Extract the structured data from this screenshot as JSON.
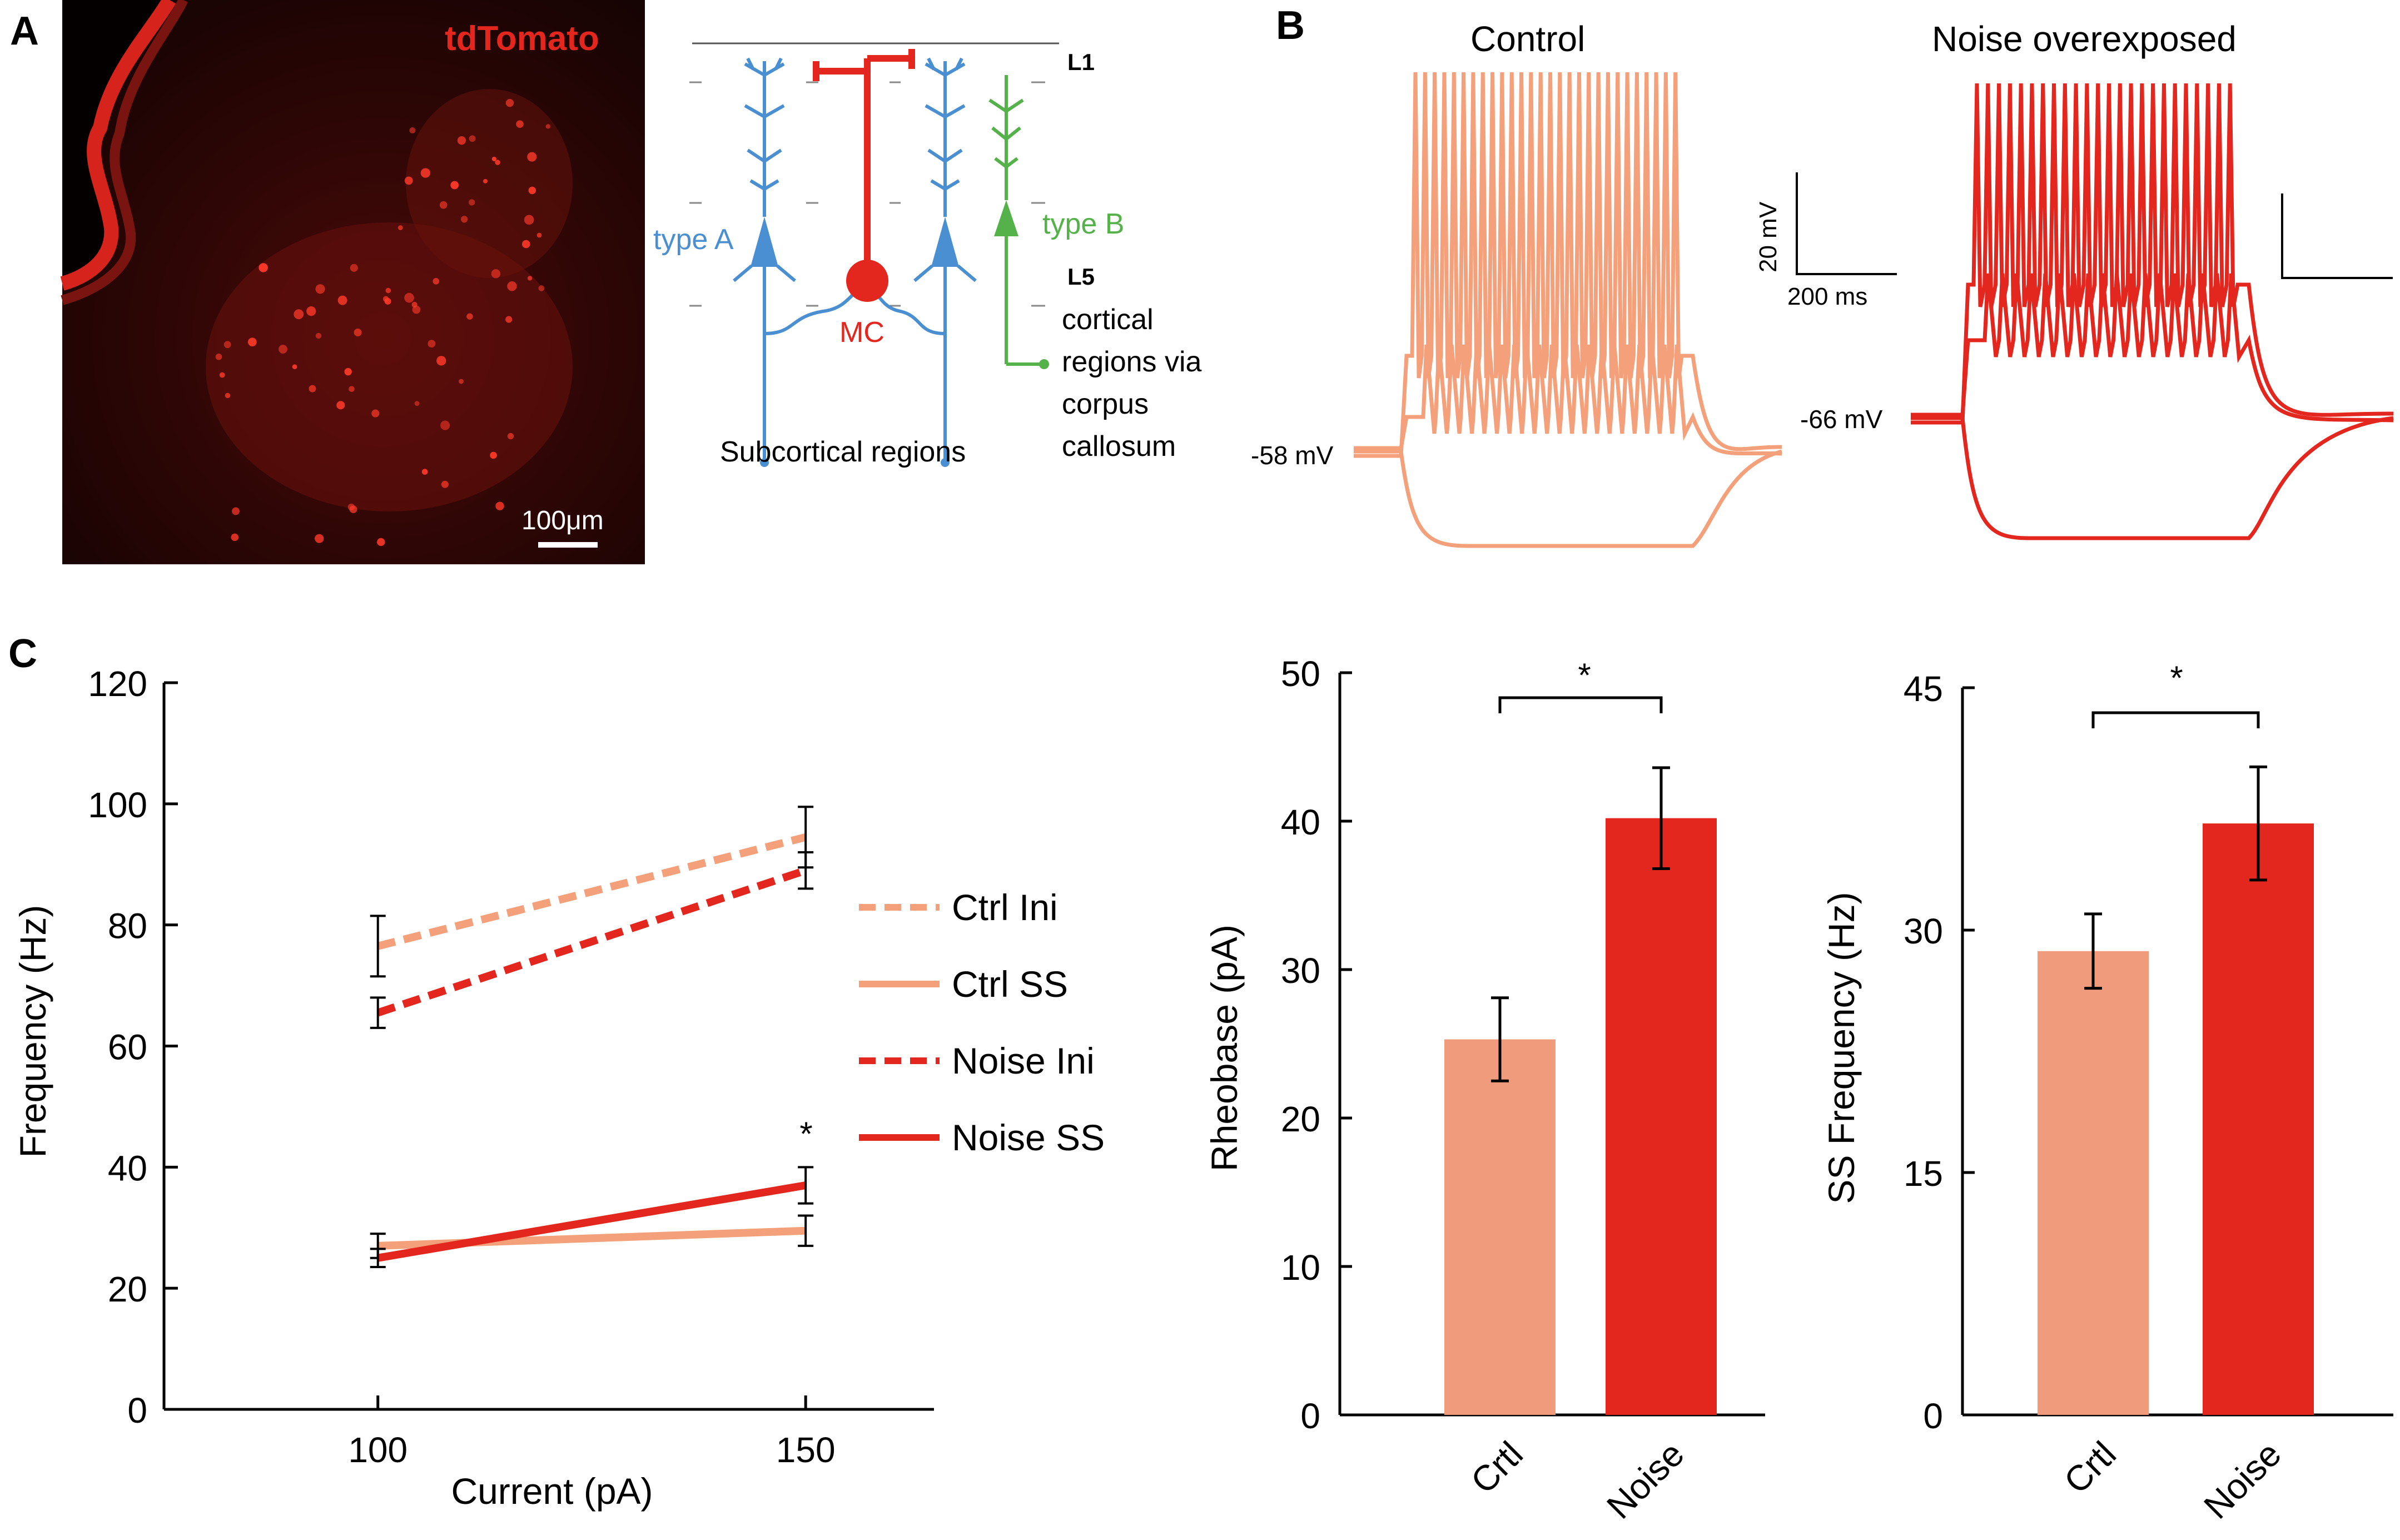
{
  "panel_a": {
    "label": "A",
    "micrograph_label": "tdTomato",
    "scale_bar_label": "100μm",
    "layers": {
      "top": "L1",
      "deep": "L5"
    },
    "cells": {
      "type_a": "type A",
      "type_b": "type B",
      "mc": "MC"
    },
    "targets": {
      "subcortical": "Subcortical regions",
      "callosal": [
        "cortical",
        "regions via",
        "corpus",
        "callosum"
      ]
    }
  },
  "panel_b": {
    "label": "B",
    "control_title": "Control",
    "noise_title": "Noise overexposed",
    "control_rest": "-58 mV",
    "noise_rest": "-66 mV",
    "scale_voltage": "20 mV",
    "scale_time": "200 ms",
    "colors": {
      "control": "#F4A07A",
      "noise": "#E3261E"
    }
  },
  "panel_c": {
    "label": "C"
  },
  "chart_data": [
    {
      "type": "line",
      "x": [
        100,
        150
      ],
      "xlabel": "Current (pA)",
      "ylabel": "Frequency (Hz)",
      "ylim": [
        0,
        120
      ],
      "xticks": [
        100,
        150
      ],
      "yticks": [
        0,
        20,
        40,
        60,
        80,
        100,
        120
      ],
      "series": [
        {
          "name": "Ctrl Ini",
          "values": [
            76.5,
            94.5
          ],
          "errors": [
            5,
            5
          ],
          "style": "dashed",
          "color": "#F4A07A"
        },
        {
          "name": "Ctrl SS",
          "values": [
            27,
            29.5
          ],
          "errors": [
            2,
            2.5
          ],
          "style": "solid",
          "color": "#F4A07A"
        },
        {
          "name": "Noise Ini",
          "values": [
            65.5,
            89
          ],
          "errors": [
            2.5,
            3
          ],
          "style": "dashed",
          "color": "#E3261E"
        },
        {
          "name": "Noise SS",
          "values": [
            25,
            37
          ],
          "errors": [
            1.5,
            3
          ],
          "style": "solid",
          "color": "#E3261E"
        }
      ],
      "annotations": [
        {
          "text": "*",
          "x": 150
        }
      ],
      "legend": "right"
    },
    {
      "type": "bar",
      "categories": [
        "Crtl",
        "Noise"
      ],
      "values": [
        25.3,
        40.2
      ],
      "errors": [
        2.8,
        3.4
      ],
      "colors": [
        "#F09B7B",
        "#E3261E"
      ],
      "ylabel": "Rheobase (pA)",
      "ylim": [
        0,
        50
      ],
      "yticks": [
        0,
        10,
        20,
        30,
        40,
        50
      ],
      "significance": "*"
    },
    {
      "type": "bar",
      "categories": [
        "Crtl",
        "Noise"
      ],
      "values": [
        28.7,
        36.6
      ],
      "errors": [
        2.3,
        3.5
      ],
      "colors": [
        "#F09B7B",
        "#E3261E"
      ],
      "ylabel": "SS Frequency (Hz)",
      "ylim": [
        0,
        45
      ],
      "yticks": [
        0,
        15,
        30,
        45
      ],
      "significance": "*"
    }
  ]
}
